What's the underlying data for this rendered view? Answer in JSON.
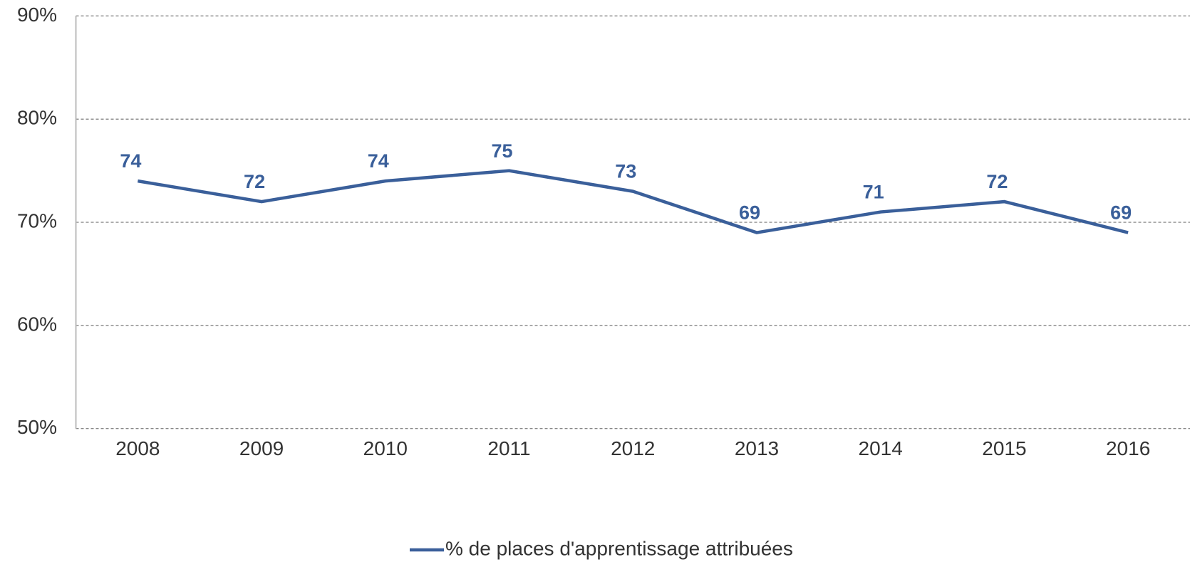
{
  "chart_data": {
    "type": "line",
    "categories": [
      "2008",
      "2009",
      "2010",
      "2011",
      "2012",
      "2013",
      "2014",
      "2015",
      "2016"
    ],
    "series": [
      {
        "name": "% de places d'apprentissage attribuées",
        "color": "#3a5f9a",
        "values": [
          74,
          72,
          74,
          75,
          73,
          69,
          71,
          72,
          69
        ]
      }
    ],
    "ylim": [
      50,
      90
    ],
    "yticks": [
      {
        "value": 50,
        "label": "50%"
      },
      {
        "value": 60,
        "label": "60%"
      },
      {
        "value": 70,
        "label": "70%"
      },
      {
        "value": 80,
        "label": "80%"
      },
      {
        "value": 90,
        "label": "90%"
      }
    ],
    "grid": true,
    "legend": "bottom"
  }
}
